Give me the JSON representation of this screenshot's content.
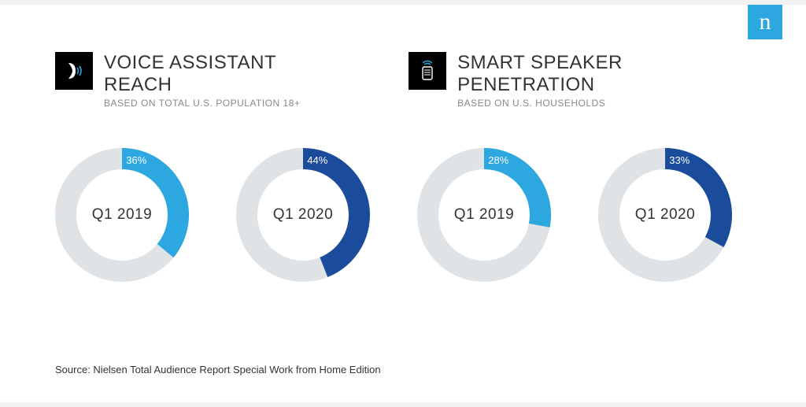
{
  "logo_letter": "n",
  "sections": [
    {
      "title": "VOICE ASSISTANT REACH",
      "subtitle": "BASED ON TOTAL U.S. POPULATION 18+",
      "icon": "voice"
    },
    {
      "title": "SMART SPEAKER PENETRATION",
      "subtitle": "BASED ON U.S. HOUSEHOLDS",
      "icon": "speaker"
    }
  ],
  "charts": [
    {
      "label": "Q1 2019",
      "pct": 36,
      "fill": "#2ca7df",
      "track": "#dfe3e6",
      "pct_text": "36%"
    },
    {
      "label": "Q1 2020",
      "pct": 44,
      "fill": "#1b4c9c",
      "track": "#dfe3e6",
      "pct_text": "44%"
    },
    {
      "label": "Q1 2019",
      "pct": 28,
      "fill": "#2ca7df",
      "track": "#dfe3e6",
      "pct_text": "28%"
    },
    {
      "label": "Q1 2020",
      "pct": 33,
      "fill": "#1b4c9c",
      "track": "#dfe3e6",
      "pct_text": "33%"
    }
  ],
  "donut": {
    "outer_r": 85,
    "inner_r": 58,
    "start_angle_deg": 0,
    "pct_label_fontsize": 13,
    "center_label_fontsize": 19
  },
  "source": "Source: Nielsen Total Audience Report Special Work from Home Edition",
  "colors": {
    "brand": "#2ca7df",
    "dark_blue": "#1b4c9c",
    "track": "#dfe3e6",
    "text": "#333333",
    "subtext": "#888888",
    "icon_bg": "#000000",
    "bg": "#ffffff"
  }
}
